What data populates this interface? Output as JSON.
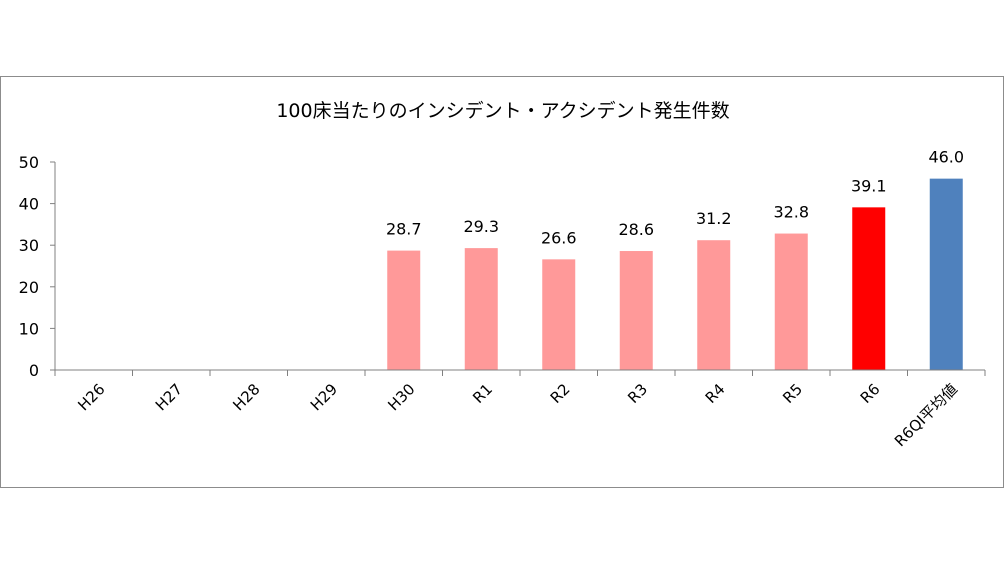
{
  "chart_data": {
    "type": "bar",
    "title": "100床当たりのインシデント・アクシデント発生件数",
    "categories": [
      "H26",
      "H27",
      "H28",
      "H29",
      "H30",
      "R1",
      "R2",
      "R3",
      "R4",
      "R5",
      "R6",
      "R6QI平均値"
    ],
    "values": [
      null,
      null,
      null,
      null,
      28.7,
      29.3,
      26.6,
      28.6,
      31.2,
      32.8,
      39.1,
      46.0
    ],
    "data_labels": [
      "",
      "",
      "",
      "",
      "28.7",
      "29.3",
      "26.6",
      "28.6",
      "31.2",
      "32.8",
      "39.1",
      "46.0"
    ],
    "bar_colors": [
      "#ff9999",
      "#ff9999",
      "#ff9999",
      "#ff9999",
      "#ff9999",
      "#ff9999",
      "#ff9999",
      "#ff9999",
      "#ff9999",
      "#ff9999",
      "#ff0000",
      "#4f81bd"
    ],
    "ylim": [
      0,
      50
    ],
    "yticks": [
      0,
      10,
      20,
      30,
      40,
      50
    ],
    "ytick_labels": [
      "0",
      "10",
      "20",
      "30",
      "40",
      "50"
    ],
    "grid": false,
    "legend": "none"
  }
}
